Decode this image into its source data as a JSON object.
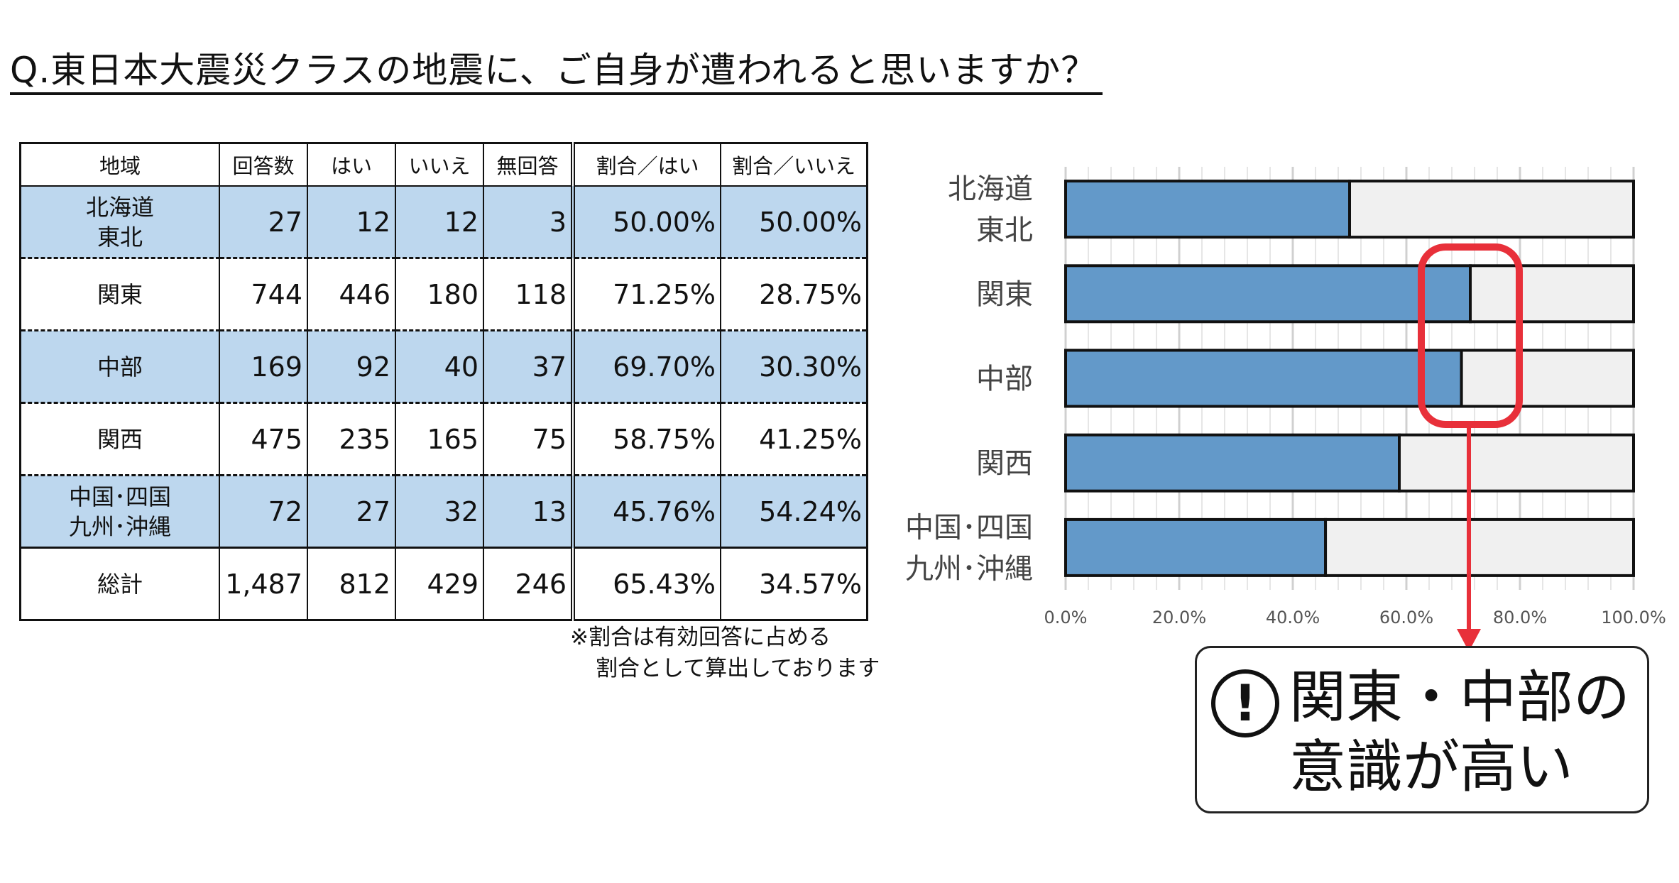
{
  "title": "Q.東日本大震災クラスの地震に、ご自身が遭われると思いますか？",
  "table": {
    "headers": [
      "地域",
      "回答数",
      "はい",
      "いいえ",
      "無回答",
      "割合／はい",
      "割合／いいえ"
    ],
    "rows": [
      {
        "region_line1": "北海道",
        "region_line2": "東北",
        "cells": [
          "27",
          "12",
          "12",
          "3",
          "50.00%",
          "50.00%"
        ]
      },
      {
        "region_line1": "関東",
        "region_line2": "",
        "cells": [
          "744",
          "446",
          "180",
          "118",
          "71.25%",
          "28.75%"
        ]
      },
      {
        "region_line1": "中部",
        "region_line2": "",
        "cells": [
          "169",
          "92",
          "40",
          "37",
          "69.70%",
          "30.30%"
        ]
      },
      {
        "region_line1": "関西",
        "region_line2": "",
        "cells": [
          "475",
          "235",
          "165",
          "75",
          "58.75%",
          "41.25%"
        ]
      },
      {
        "region_line1": "中国･四国",
        "region_line2": "九州･沖縄",
        "cells": [
          "72",
          "27",
          "32",
          "13",
          "45.76%",
          "54.24%"
        ]
      },
      {
        "region_line1": "総計",
        "region_line2": "",
        "cells": [
          "1,487",
          "812",
          "429",
          "246",
          "65.43%",
          "34.57%"
        ]
      }
    ]
  },
  "note": {
    "line1": "※割合は有効回答に占める",
    "line2": "割合として算出しております"
  },
  "chart_data": {
    "type": "bar",
    "orientation": "horizontal",
    "stacked": true,
    "categories": [
      [
        "北海道",
        "東北"
      ],
      [
        "関東"
      ],
      [
        "中部"
      ],
      [
        "関西"
      ],
      [
        "中国･四国",
        "九州･沖縄"
      ]
    ],
    "series": [
      {
        "name": "はい",
        "values": [
          50.0,
          71.25,
          69.7,
          58.75,
          45.76
        ],
        "color": "#6399c9"
      },
      {
        "name": "いいえ",
        "values": [
          50.0,
          28.75,
          30.3,
          41.25,
          54.24
        ],
        "color": "#f0f0f0"
      }
    ],
    "xlim": [
      0,
      100
    ],
    "xticks": [
      "0.0%",
      "20.0%",
      "40.0%",
      "60.0%",
      "80.0%",
      "100.0%"
    ],
    "grid": true,
    "highlight_color": "#e8303a"
  },
  "callout": {
    "line1": "関東・中部の",
    "line2": "意識が高い",
    "icon": "exclamation-circle-icon"
  }
}
